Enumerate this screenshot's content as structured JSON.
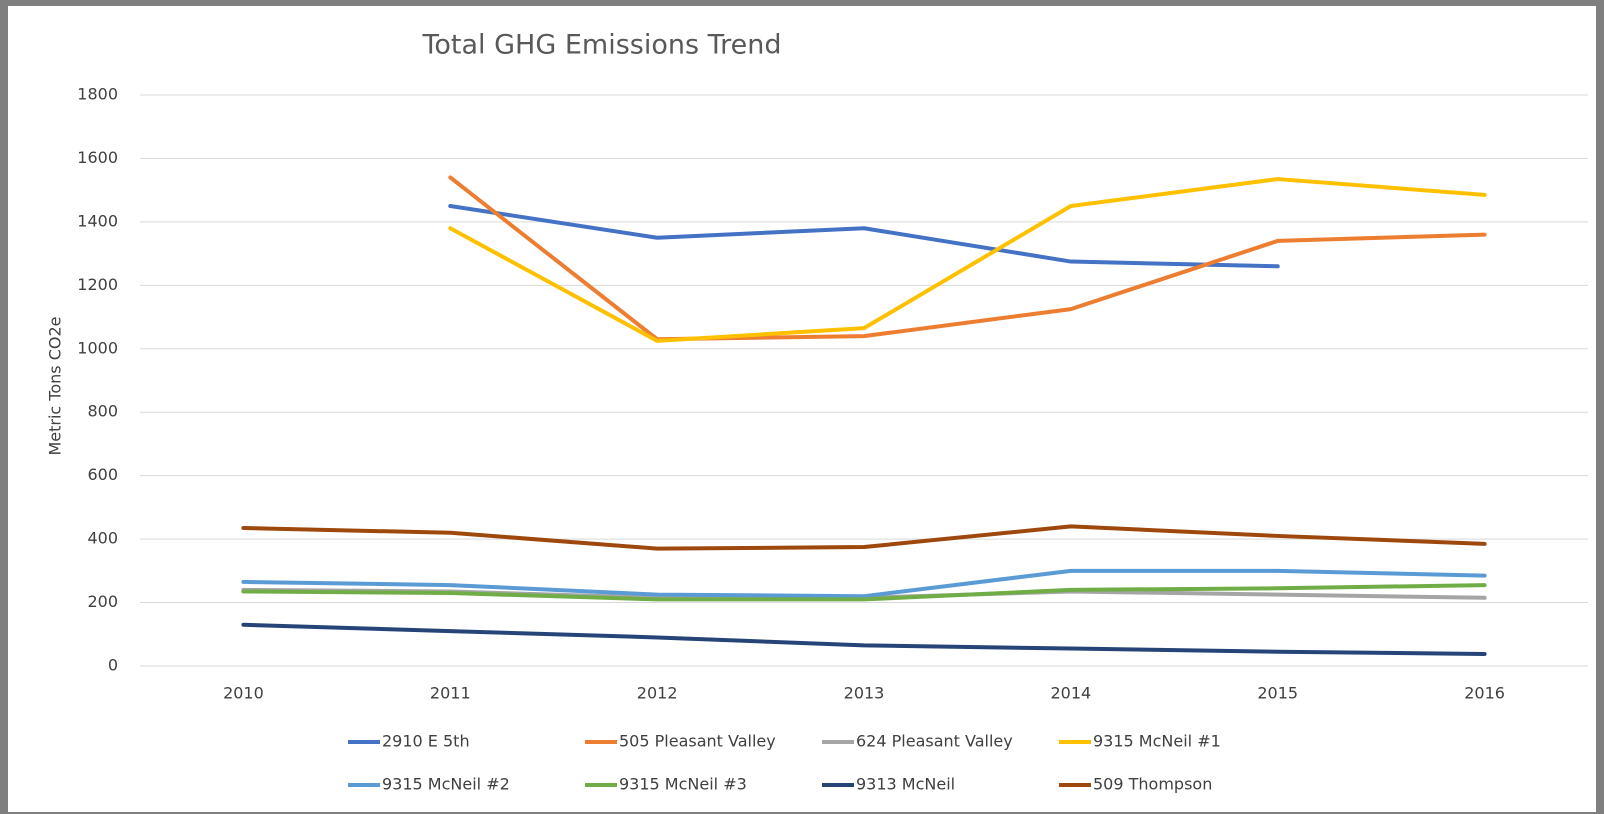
{
  "chart_data": {
    "type": "line",
    "title": "Total GHG Emissions Trend",
    "y_label": "Metric Tons CO2e",
    "categories": [
      "2010",
      "2011",
      "2012",
      "2013",
      "2014",
      "2015",
      "2016"
    ],
    "series": [
      {
        "name": "2910 E 5th",
        "color": "#4472c4",
        "values": [
          null,
          1450,
          1350,
          1380,
          1275,
          1260,
          null
        ]
      },
      {
        "name": "505 Pleasant Valley",
        "color": "#ed7d31",
        "values": [
          null,
          1540,
          1030,
          1040,
          1125,
          1340,
          1360
        ]
      },
      {
        "name": "624 Pleasant Valley",
        "color": "#a5a5a5",
        "values": [
          240,
          235,
          215,
          215,
          235,
          225,
          215
        ]
      },
      {
        "name": "9315 McNeil #1",
        "color": "#ffc000",
        "values": [
          null,
          1380,
          1025,
          1065,
          1450,
          1535,
          1485
        ]
      },
      {
        "name": "9315 McNeil #2",
        "color": "#5b9bd5",
        "values": [
          265,
          255,
          225,
          220,
          300,
          300,
          285
        ]
      },
      {
        "name": "9315 McNeil #3",
        "color": "#70ad47",
        "values": [
          235,
          230,
          210,
          210,
          240,
          245,
          255
        ]
      },
      {
        "name": "9313 McNeil",
        "color": "#264478",
        "values": [
          130,
          110,
          90,
          65,
          55,
          45,
          38
        ]
      },
      {
        "name": "509 Thompson",
        "color": "#9e480e",
        "values": [
          435,
          420,
          370,
          375,
          440,
          410,
          385
        ]
      }
    ],
    "ylim": [
      0,
      1800
    ],
    "yticks": [
      0,
      200,
      400,
      600,
      800,
      1000,
      1200,
      1400,
      1600,
      1800
    ],
    "grid": true,
    "legend": "bottom"
  }
}
